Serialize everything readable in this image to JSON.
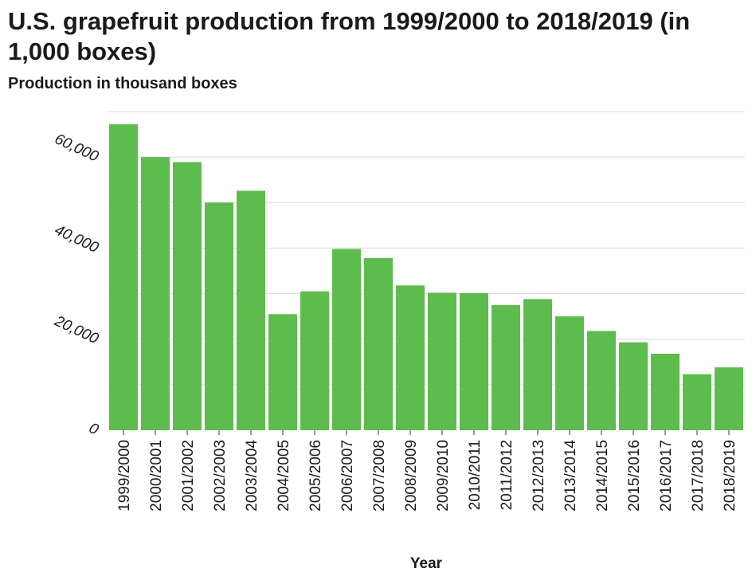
{
  "chart_data": {
    "type": "bar",
    "title": "U.S. grapefruit production from 1999/2000 to 2018/2019 (in 1,000 boxes)",
    "ylabel": "Production in thousand boxes",
    "xlabel": "Year",
    "categories": [
      "1999/2000",
      "2000/2001",
      "2001/2002",
      "2002/2003",
      "2003/2004",
      "2004/2005",
      "2005/2006",
      "2006/2007",
      "2007/2008",
      "2008/2009",
      "2009/2010",
      "2010/2011",
      "2011/2012",
      "2012/2013",
      "2013/2014",
      "2014/2015",
      "2015/2016",
      "2016/2017",
      "2017/2018",
      "2018/2019"
    ],
    "values": [
      67200,
      60000,
      58900,
      50000,
      52600,
      25500,
      30500,
      39800,
      37800,
      31800,
      30200,
      30100,
      27500,
      28800,
      25000,
      21800,
      19300,
      16800,
      12300,
      13800
    ],
    "ylim": [
      0,
      70000
    ],
    "yticks": [
      0,
      20000,
      40000,
      60000
    ],
    "ytick_labels": [
      "0",
      "20,000",
      "40,000",
      "60,000"
    ],
    "grid": true,
    "bar_color": "#5cbc4c"
  }
}
